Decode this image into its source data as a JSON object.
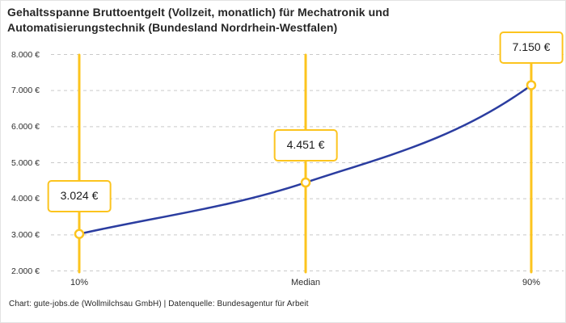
{
  "title": "Gehaltsspanne Bruttoentgelt (Vollzeit, monatlich) für Mechatronik und Automatisierungstechnik (Bundesland Nordrhein-Westfalen)",
  "footer": {
    "credit": "Chart: gute-jobs.de (Wollmilchsau GmbH) | Datenquelle: Bundesagentur für Arbeit"
  },
  "chart_data": {
    "type": "line",
    "title": "Gehaltsspanne Bruttoentgelt (Vollzeit, monatlich) für Mechatronik und Automatisierungstechnik (Bundesland Nordrhein-Westfalen)",
    "categories": [
      "10%",
      "Median",
      "90%"
    ],
    "values": [
      3024,
      4451,
      7150
    ],
    "value_labels": [
      "3.024 €",
      "4.451 €",
      "7.150 €"
    ],
    "unit": "€",
    "ylim": [
      2000,
      8000
    ],
    "y_ticks": [
      8000,
      7000,
      6000,
      5000,
      4000,
      3000,
      2000
    ],
    "y_tick_labels": [
      "8.000 €",
      "7.000 €",
      "6.000 €",
      "5.000 €",
      "4.000 €",
      "3.000 €",
      "2.000 €"
    ],
    "grid": "horizontal-dashed",
    "legend": "none",
    "colors": {
      "curve": "#2B3DA0",
      "accent": "#FCC41E",
      "grid": "#C9C9C9",
      "title_text": "#262626",
      "axis_text": "#2E2E2E"
    }
  }
}
